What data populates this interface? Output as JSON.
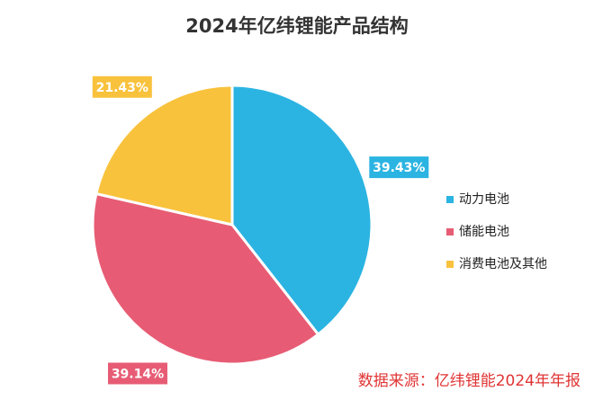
{
  "chart_data": {
    "type": "pie",
    "title": "2024年亿纬锂能产品结构",
    "categories": [
      "动力电池",
      "储能电池",
      "消费电池及其他"
    ],
    "values": [
      39.43,
      39.14,
      21.43
    ],
    "value_labels": [
      "39.43%",
      "39.14%",
      "21.43%"
    ],
    "colors": [
      "#2bb4e2",
      "#e75c74",
      "#f9c23c"
    ],
    "legend": "right",
    "source": "数据来源：亿纬锂能2024年年报"
  }
}
